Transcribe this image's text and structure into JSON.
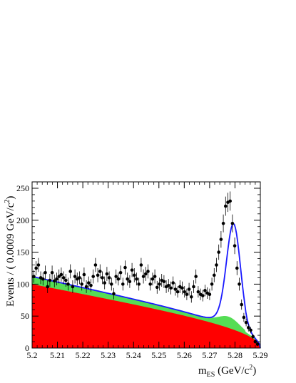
{
  "chart_data": {
    "type": "scatter",
    "xlabel": {
      "main": "m",
      "sub": "ES",
      "unit_pre": " (GeV/c",
      "unit_sup": "2",
      "unit_post": ")"
    },
    "ylabel": {
      "main": "Events / ( 0.0009 GeV/c",
      "sup": "2",
      "post": ")"
    },
    "xlim": [
      5.2,
      5.29
    ],
    "ylim": [
      0,
      260
    ],
    "x_ticks": [
      "5.2",
      "5.21",
      "5.22",
      "5.23",
      "5.24",
      "5.25",
      "5.26",
      "5.27",
      "5.28",
      "5.29"
    ],
    "x_tick_values": [
      5.2,
      5.21,
      5.22,
      5.23,
      5.24,
      5.25,
      5.26,
      5.27,
      5.28,
      5.29
    ],
    "y_ticks": [
      "0",
      "50",
      "100",
      "150",
      "200",
      "250"
    ],
    "y_tick_values": [
      0,
      50,
      100,
      150,
      200,
      250
    ],
    "grid": false,
    "colors": {
      "red_bkg": "#ff0000",
      "green_bkg": "#55dd55",
      "fit_line": "#1a1aff",
      "points": "#000000"
    },
    "series": [
      {
        "kind": "points_with_errors",
        "x": [
          5.2007,
          5.2016,
          5.2025,
          5.2034,
          5.2043,
          5.2052,
          5.2061,
          5.207,
          5.2079,
          5.2088,
          5.2097,
          5.2106,
          5.2115,
          5.2124,
          5.2133,
          5.2142,
          5.2151,
          5.216,
          5.2169,
          5.2178,
          5.2187,
          5.2196,
          5.2205,
          5.2214,
          5.2223,
          5.2232,
          5.2241,
          5.225,
          5.2259,
          5.2268,
          5.2277,
          5.2286,
          5.2295,
          5.2304,
          5.2313,
          5.2322,
          5.2331,
          5.234,
          5.2349,
          5.2358,
          5.2367,
          5.2376,
          5.2385,
          5.2394,
          5.2403,
          5.2412,
          5.2421,
          5.243,
          5.2439,
          5.2448,
          5.2457,
          5.2466,
          5.2475,
          5.2484,
          5.2493,
          5.2502,
          5.2511,
          5.252,
          5.2529,
          5.2538,
          5.2547,
          5.2556,
          5.2565,
          5.2574,
          5.2583,
          5.2592,
          5.2601,
          5.261,
          5.2619,
          5.2628,
          5.2637,
          5.2646,
          5.2655,
          5.2664,
          5.2673,
          5.2682,
          5.2691,
          5.27,
          5.2709,
          5.2718,
          5.2727,
          5.2736,
          5.2745,
          5.2754,
          5.2763,
          5.2772,
          5.2781,
          5.279,
          5.2799,
          5.2808,
          5.2817,
          5.2826,
          5.2835,
          5.2844,
          5.2853,
          5.2862,
          5.2871,
          5.288,
          5.2889
        ],
        "y": [
          112,
          125,
          130,
          110,
          108,
          118,
          96,
          106,
          118,
          105,
          108,
          112,
          115,
          110,
          106,
          100,
          120,
          96,
          112,
          108,
          110,
          100,
          115,
          96,
          102,
          98,
          112,
          130,
          114,
          120,
          110,
          102,
          116,
          110,
          100,
          85,
          112,
          108,
          118,
          100,
          126,
          108,
          104,
          122,
          114,
          108,
          100,
          130,
          112,
          116,
          120,
          100,
          108,
          112,
          95,
          100,
          106,
          104,
          96,
          98,
          94,
          102,
          92,
          88,
          96,
          94,
          88,
          84,
          92,
          80,
          96,
          112,
          88,
          84,
          82,
          90,
          86,
          84,
          100,
          114,
          130,
          150,
          170,
          195,
          222,
          228,
          230,
          195,
          160,
          125,
          100,
          68,
          48,
          40,
          32,
          28,
          18,
          10,
          6
        ],
        "err": [
          10,
          11,
          11,
          10,
          10,
          11,
          10,
          10,
          11,
          10,
          10,
          11,
          11,
          10,
          10,
          10,
          11,
          10,
          11,
          10,
          10,
          10,
          11,
          10,
          10,
          10,
          11,
          11,
          11,
          11,
          10,
          10,
          11,
          10,
          10,
          9,
          11,
          10,
          11,
          10,
          11,
          10,
          10,
          11,
          11,
          10,
          10,
          11,
          11,
          11,
          11,
          10,
          10,
          11,
          10,
          10,
          10,
          10,
          10,
          10,
          10,
          10,
          10,
          9,
          10,
          10,
          9,
          9,
          10,
          9,
          10,
          11,
          9,
          9,
          9,
          9,
          9,
          9,
          10,
          11,
          11,
          12,
          13,
          14,
          15,
          15,
          15,
          14,
          13,
          11,
          10,
          8,
          7,
          6,
          6,
          5,
          4,
          3,
          3
        ]
      }
    ]
  }
}
